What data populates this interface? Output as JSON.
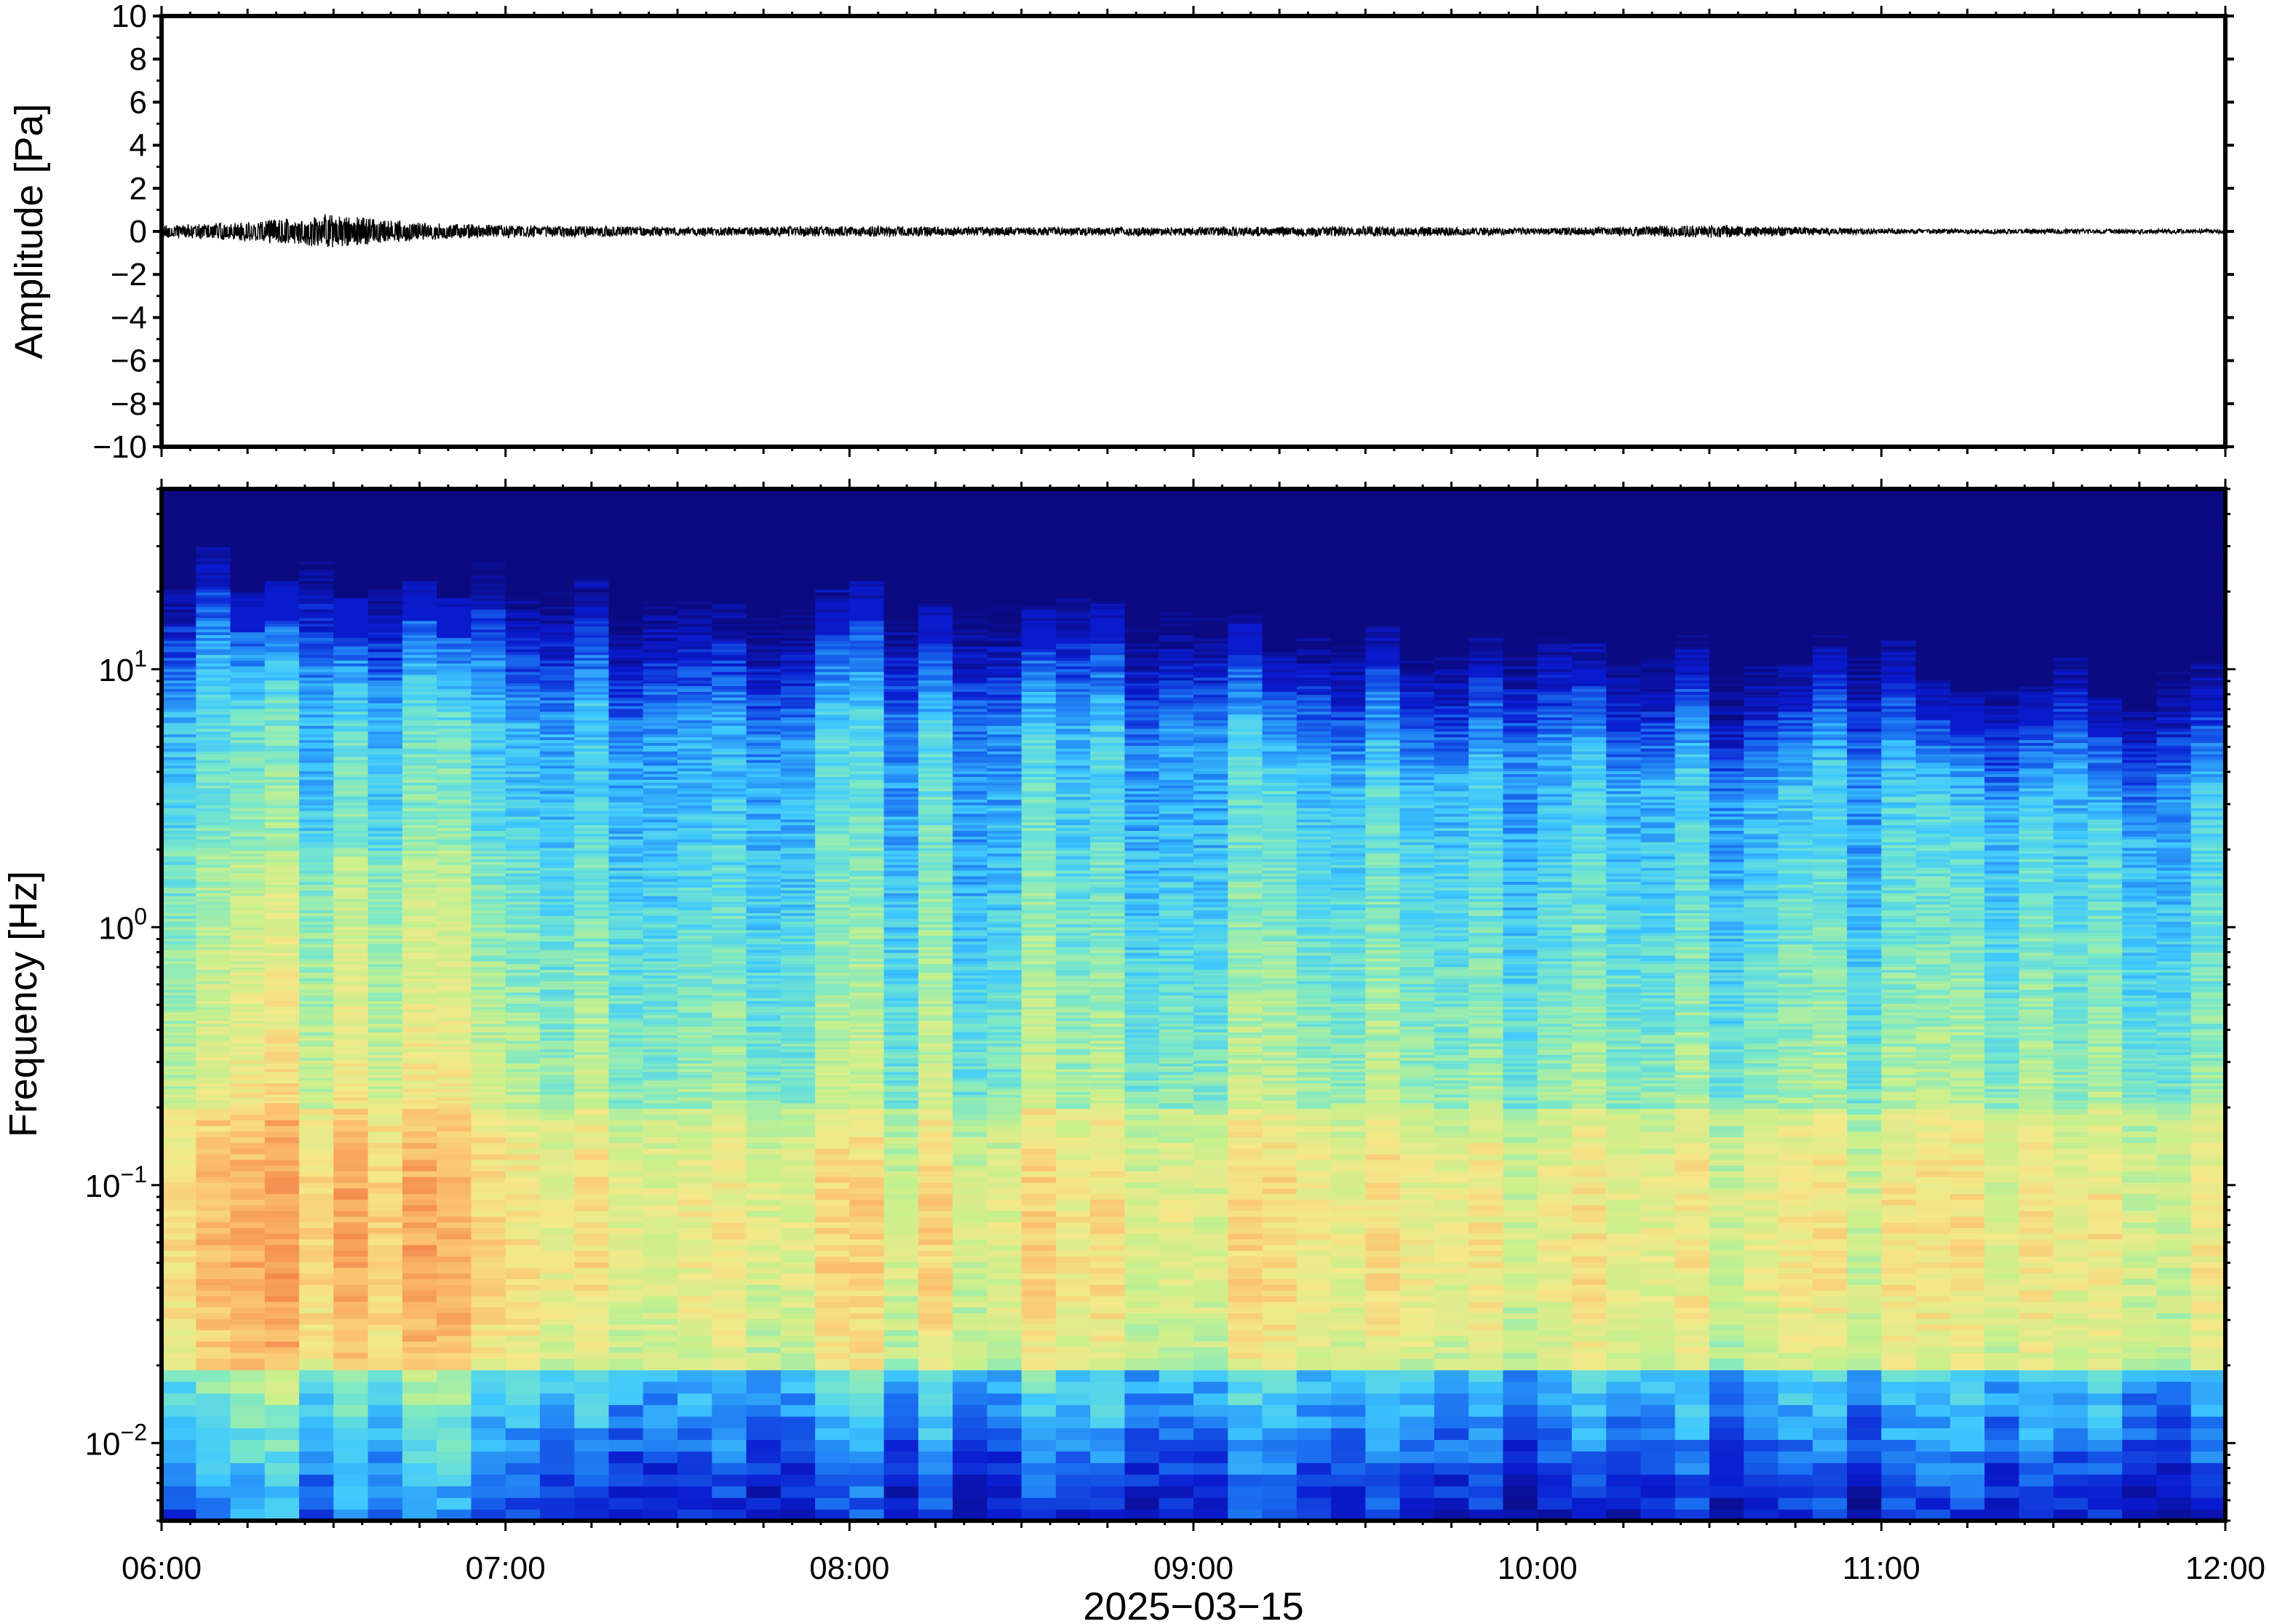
{
  "chart_data": [
    {
      "type": "line",
      "ylabel": "Amplitude [Pa]",
      "ylim": [
        -10,
        10
      ],
      "yticks": [
        -10,
        -8,
        -6,
        -4,
        -2,
        0,
        2,
        4,
        6,
        8,
        10
      ],
      "ytick_labels": [
        "−10",
        "−8",
        "−6",
        "−4",
        "−2",
        "0",
        "2",
        "4",
        "6",
        "8",
        "10"
      ],
      "x_range": [
        "06:00",
        "12:00"
      ],
      "grid": false,
      "series": [
        {
          "envelope_hours": [
            6.0,
            6.25,
            6.5,
            6.75,
            7.0,
            7.5,
            8.0,
            8.5,
            9.0,
            9.5,
            10.0,
            10.5,
            11.0,
            11.5,
            12.0
          ],
          "envelope_pa": [
            0.3,
            0.45,
            0.8,
            0.4,
            0.3,
            0.2,
            0.25,
            0.2,
            0.2,
            0.25,
            0.15,
            0.3,
            0.12,
            0.12,
            0.1
          ],
          "color": "#000000"
        }
      ]
    },
    {
      "type": "heatmap",
      "ylabel": "Frequency [Hz]",
      "yscale": "log",
      "ylim": [
        0.005,
        50
      ],
      "yticks": [
        0.01,
        0.1,
        1,
        10
      ],
      "ytick_labels": [
        {
          "base": "10",
          "exp": "−2"
        },
        {
          "base": "10",
          "exp": "−1"
        },
        {
          "base": "10",
          "exp": "0"
        },
        {
          "base": "10",
          "exp": "1"
        }
      ],
      "xlabel": "2025−03−15",
      "xlim": [
        "06:00",
        "12:00"
      ],
      "xtick_labels": [
        "06:00",
        "07:00",
        "08:00",
        "09:00",
        "10:00",
        "11:00",
        "12:00"
      ],
      "colormap": "jet",
      "colormap_stops": [
        "#0b0a80",
        "#0a1bd0",
        "#1a6ff0",
        "#3ec8ff",
        "#7ae8c8",
        "#c8f08c",
        "#f4e88a",
        "#fbbf6e",
        "#f48a4e"
      ],
      "structure": {
        "time_bins": 60,
        "upper_cutoff_hz_start": 25,
        "upper_cutoff_hz_end": 9,
        "peak_energy_band_hz": [
          0.03,
          0.15
        ],
        "peak_energy_time": "06:30"
      }
    }
  ]
}
